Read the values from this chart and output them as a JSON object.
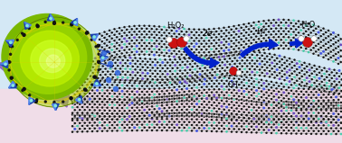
{
  "bg_sky": "#d4e8f5",
  "bg_pink": "#f0dde8",
  "sphere_color_center": "#c8f000",
  "sphere_color_edge": "#88c800",
  "carbon_black": "#111111",
  "cobalt_blue_dark": "#1a3da8",
  "cobalt_blue_mid": "#3a6ee0",
  "cobalt_blue_light": "#5588ee",
  "nitrogen_cyan": "#44ccaa",
  "nitrogen_purple": "#6644bb",
  "nitrogen_blue": "#4455dd",
  "arrow_blue": "#0022cc",
  "red_atom": "#cc1111",
  "white_atom": "#ffffff",
  "yellow_line": "#ddcc00",
  "purple_tri": "#8855bb",
  "h2o2_text": "H₂O₂",
  "h2o_text": "H₂O",
  "e2_text": "2e⁻",
  "hplus_text": "H⁺",
  "oh_text": "OH⁻"
}
